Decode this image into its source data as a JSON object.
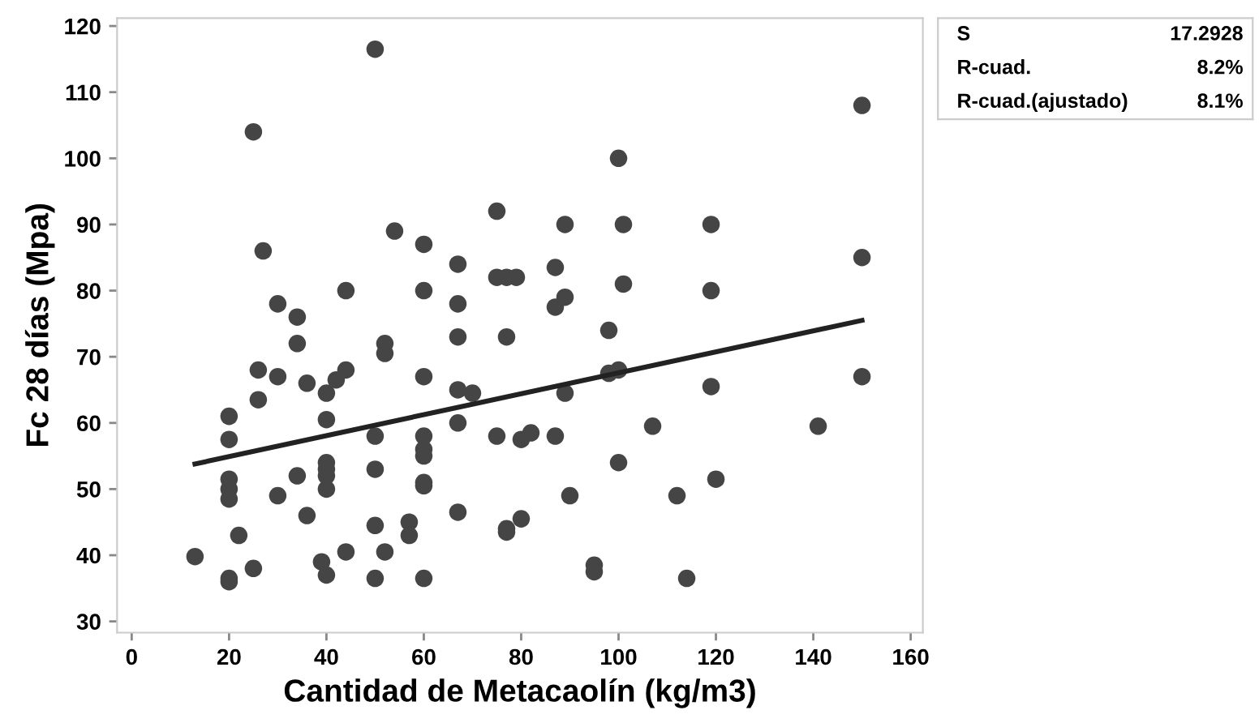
{
  "chart_data": {
    "type": "scatter",
    "xlabel": "Cantidad de Metacaolín (kg/m3)",
    "ylabel": "Fc 28 días (Mpa)",
    "xlim": [
      -3,
      162.5
    ],
    "ylim": [
      28.3,
      121.2
    ],
    "xticks": [
      0,
      20,
      40,
      60,
      80,
      100,
      120,
      140,
      160
    ],
    "yticks": [
      30,
      40,
      50,
      60,
      70,
      80,
      90,
      100,
      110,
      120
    ],
    "grid": false,
    "legend": false,
    "marker": "circle",
    "annotations": [
      "S",
      "17.2928",
      "R-cuad.",
      "8.2%",
      "R-cuad.(ajustado)",
      "8.1%"
    ],
    "series": [
      {
        "color": "#454545",
        "x": [
          13,
          20,
          20,
          20,
          20,
          20,
          20,
          20,
          22,
          25,
          25,
          26,
          26,
          27,
          30,
          30,
          30,
          34,
          34,
          34,
          36,
          36,
          39,
          40,
          40,
          40,
          40,
          40,
          40,
          40,
          42,
          44,
          44,
          44,
          50,
          50,
          50,
          50,
          50,
          52,
          52,
          52,
          54,
          57,
          57,
          60,
          60,
          60,
          60,
          60,
          60,
          60,
          60,
          60,
          67,
          67,
          67,
          67,
          67,
          67,
          70,
          75,
          75,
          75,
          77,
          77,
          77,
          77,
          79,
          80,
          80,
          82,
          87,
          87,
          87,
          89,
          89,
          89,
          90,
          95,
          95,
          98,
          98,
          100,
          100,
          100,
          101,
          101,
          107,
          112,
          114,
          119,
          119,
          119,
          120,
          141,
          150,
          150,
          150
        ],
        "values": [
          39.8,
          36,
          36.5,
          48.5,
          50,
          51.5,
          57.5,
          61,
          43,
          104,
          38,
          63.5,
          68,
          86,
          78,
          67,
          49,
          76,
          72,
          52,
          66,
          46,
          39,
          37,
          52,
          53,
          54,
          50,
          60.5,
          64.5,
          66.5,
          68,
          80,
          40.5,
          116.5,
          58,
          53,
          44.5,
          36.5,
          72,
          70.5,
          40.5,
          89,
          45,
          43,
          87,
          80,
          67,
          58,
          56,
          55,
          51,
          50.5,
          36.5,
          84,
          78,
          73,
          65,
          60,
          46.5,
          64.5,
          92,
          82,
          58,
          73,
          82,
          44,
          43.5,
          82,
          57.5,
          45.5,
          58.5,
          83.5,
          77.5,
          58,
          90,
          79,
          64.5,
          49,
          38.5,
          37.5,
          74,
          67.5,
          100,
          68,
          54,
          90,
          81,
          59.5,
          49,
          36.5,
          90,
          80,
          65.5,
          51.5,
          59.5,
          108,
          85,
          67
        ]
      },
      {
        "type": "line",
        "color": "#222222",
        "marker": "none",
        "line_style": "solid",
        "x": [
          13,
          150
        ],
        "values": [
          53.8,
          75.5
        ]
      }
    ]
  }
}
